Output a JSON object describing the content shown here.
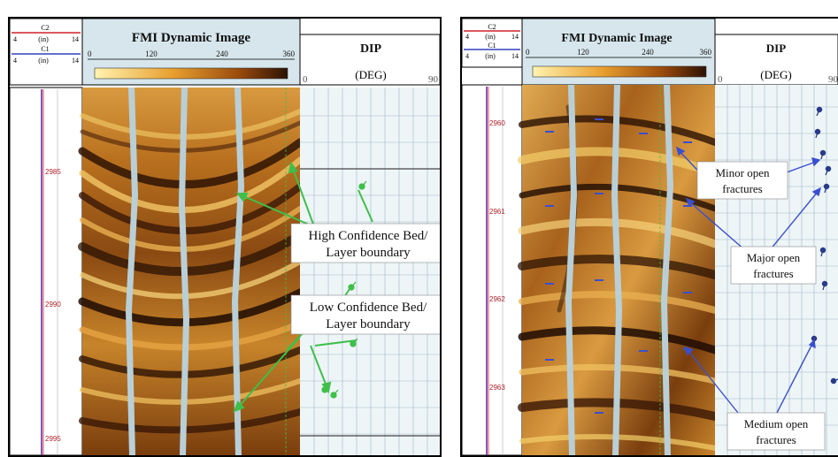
{
  "panel_a": {
    "track": {
      "c2_label": "C2",
      "c1_label": "C1",
      "scale_min": "4",
      "scale_unit": "(in)",
      "scale_max": "14"
    },
    "image_header": {
      "title": "FMI Dynamic Image",
      "ticks": [
        "0",
        "120",
        "240",
        "360"
      ]
    },
    "dip_header": {
      "title": "DIP",
      "unit": "(DEG)",
      "min": "0",
      "max": "90"
    },
    "depths": [
      "2985",
      "2990",
      "2995"
    ],
    "callouts": {
      "high_line1": "High Confidence Bed/",
      "high_line2": "Layer boundary",
      "low_line1": "Low Confidence Bed/",
      "low_line2": "Layer boundary"
    }
  },
  "panel_b": {
    "track": {
      "c2_label": "C2",
      "c1_label": "C1",
      "scale_min": "4",
      "scale_unit": "(in)",
      "scale_max": "14"
    },
    "image_header": {
      "title": "FMI Dynamic Image",
      "ticks": [
        "0",
        "120",
        "240",
        "360"
      ]
    },
    "dip_header": {
      "title": "DIP",
      "unit": "(DEG)",
      "min": "0",
      "max": "90"
    },
    "depths": [
      "2960",
      "2961",
      "2962",
      "2963"
    ],
    "callouts": {
      "minor_line1": "Minor open",
      "minor_line2": "fractures",
      "major_line1": "Major open",
      "major_line2": "fractures",
      "medium_line1": "Medium open",
      "medium_line2": "fractures"
    }
  },
  "colors": {
    "image_dark": "#3a1a05",
    "image_light": "#f4cf6a",
    "callout_arrow_a": "#3fbf4a",
    "callout_arrow_b": "#3a4fd0",
    "dip_grid": "#9db8c8"
  }
}
